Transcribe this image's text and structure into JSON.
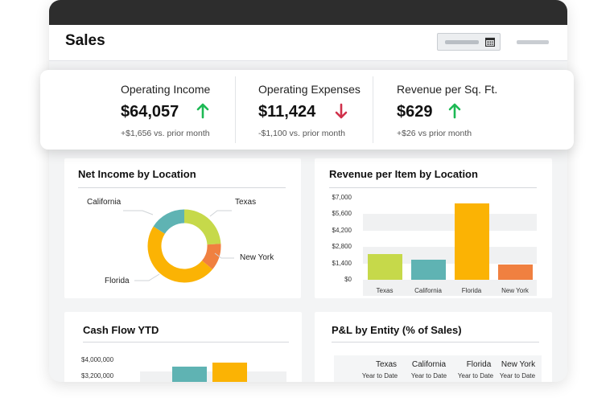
{
  "app": {
    "title": "Sales"
  },
  "kpis": [
    {
      "label": "Operating Income",
      "value": "$64,057",
      "trend": "up",
      "delta": "+$1,656 vs. prior month"
    },
    {
      "label": "Operating Expenses",
      "value": "$11,424",
      "trend": "down",
      "delta": "-$1,100 vs. prior month"
    },
    {
      "label": "Revenue per Sq. Ft.",
      "value": "$629",
      "trend": "up",
      "delta": "+$26 vs prior month"
    }
  ],
  "colors": {
    "up": "#1db954",
    "down": "#d0314b",
    "yellow_green": "#c6d94a",
    "teal": "#5fb3b3",
    "amber": "#fbb304",
    "orange": "#f08040",
    "dark": "#2d2d2d"
  },
  "net_income": {
    "title": "Net Income by Location",
    "chart_data": {
      "type": "pie",
      "categories": [
        "Texas",
        "New York",
        "Florida",
        "California"
      ],
      "values": [
        24,
        12,
        48,
        16
      ],
      "colors": [
        "#c6d94a",
        "#f08040",
        "#fbb304",
        "#5fb3b3"
      ]
    }
  },
  "revenue_per_item": {
    "title": "Revenue per Item by Location",
    "chart_data": {
      "type": "bar",
      "categories": [
        "Texas",
        "California",
        "Florida",
        "New York"
      ],
      "values": [
        2200,
        1700,
        6500,
        1300
      ],
      "colors": [
        "#c6d94a",
        "#5fb3b3",
        "#fbb304",
        "#f08040"
      ],
      "yticks": [
        "$7,000",
        "$5,600",
        "$4,200",
        "$2,800",
        "$1,400",
        "$0"
      ],
      "ylim": [
        0,
        7000
      ]
    }
  },
  "cash_flow": {
    "title": "Cash Flow YTD",
    "chart_data": {
      "type": "bar",
      "categories": [
        "",
        ""
      ],
      "values": [
        3700000,
        3900000
      ],
      "colors": [
        "#5fb3b3",
        "#fbb304"
      ],
      "yticks": [
        "$4,000,000",
        "$3,200,000"
      ],
      "ylim": [
        2800000,
        4000000
      ]
    }
  },
  "pl_entity": {
    "title": "P&L by Entity (% of Sales)",
    "columns": [
      {
        "name": "Texas",
        "sub": "Year to Date"
      },
      {
        "name": "California",
        "sub": "Year to Date"
      },
      {
        "name": "Florida",
        "sub": "Year to Date"
      },
      {
        "name": "New York",
        "sub": "Year to Date"
      }
    ]
  }
}
